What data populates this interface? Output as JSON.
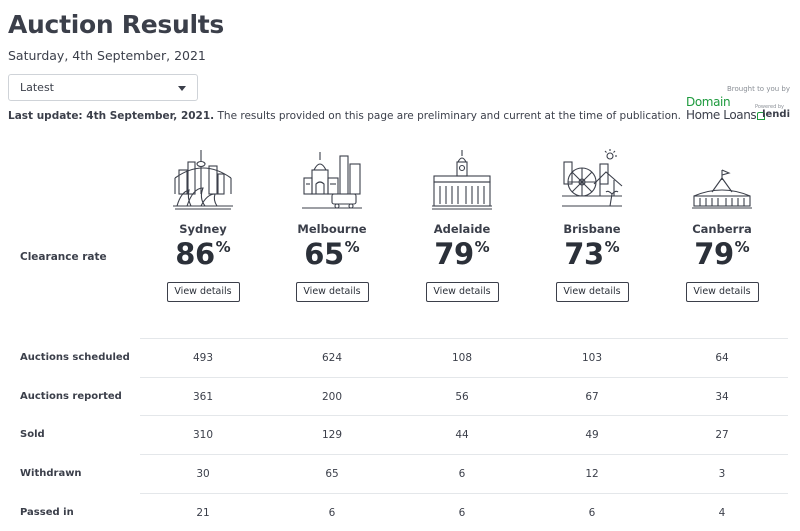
{
  "header": {
    "title": "Auction Results",
    "date": "Saturday, 4th September, 2021"
  },
  "filter": {
    "selected": "Latest"
  },
  "update": {
    "bold": "Last update: 4th September, 2021.",
    "text": " The results provided on this page are preliminary and current at the time of publication."
  },
  "sponsor": {
    "brought": "Brought to you by",
    "domain_line1": "Domain",
    "domain_line2": "Home Loans",
    "powered": "Powered by",
    "lendi": "lendi"
  },
  "clearance_label": "Clearance rate",
  "pct_sign": "%",
  "cities": [
    {
      "name": "Sydney",
      "rate": "86",
      "button": "View details",
      "icon": "sydney-skyline-icon"
    },
    {
      "name": "Melbourne",
      "rate": "65",
      "button": "View details",
      "icon": "melbourne-skyline-icon"
    },
    {
      "name": "Adelaide",
      "rate": "79",
      "button": "View details",
      "icon": "adelaide-building-icon"
    },
    {
      "name": "Brisbane",
      "rate": "73",
      "button": "View details",
      "icon": "brisbane-skyline-icon"
    },
    {
      "name": "Canberra",
      "rate": "79",
      "button": "View details",
      "icon": "canberra-parliament-icon"
    }
  ],
  "table": {
    "rows": [
      {
        "label": "Auctions scheduled",
        "values": [
          "493",
          "624",
          "108",
          "103",
          "64"
        ]
      },
      {
        "label": "Auctions reported",
        "values": [
          "361",
          "200",
          "56",
          "67",
          "34"
        ]
      },
      {
        "label": "Sold",
        "values": [
          "310",
          "129",
          "44",
          "49",
          "27"
        ]
      },
      {
        "label": "Withdrawn",
        "values": [
          "30",
          "65",
          "6",
          "12",
          "3"
        ]
      },
      {
        "label": "Passed in",
        "values": [
          "21",
          "6",
          "6",
          "6",
          "4"
        ]
      }
    ]
  }
}
